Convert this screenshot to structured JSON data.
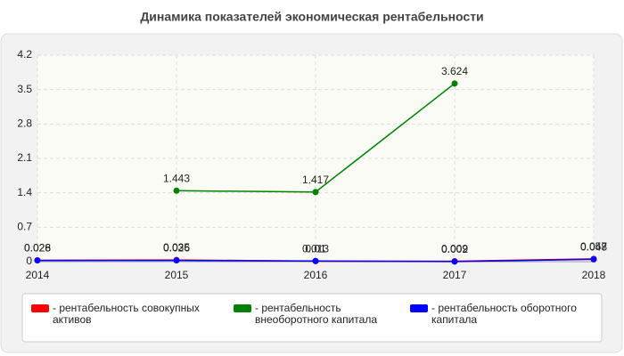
{
  "chart_data": {
    "type": "line",
    "title": "Динамика показателей экономическая рентабельности",
    "categories": [
      "2014",
      "2015",
      "2016",
      "2017",
      "2018"
    ],
    "series": [
      {
        "name": "- рентабельность совокупных активов",
        "color": "#ff0000",
        "values": [
          0.028,
          0.035,
          0.01,
          0.009,
          0.057
        ]
      },
      {
        "name": "- рентабельность внеоборотного капитала",
        "color": "#008000",
        "values": [
          null,
          1.443,
          1.417,
          3.624,
          null
        ]
      },
      {
        "name": "- рентабельность оборотного капитала",
        "color": "#0000ff",
        "values": [
          0.026,
          0.026,
          0.013,
          0.002,
          0.048
        ]
      }
    ],
    "ylim": [
      0,
      4.2
    ],
    "yticks": [
      0,
      0.7,
      1.4,
      2.1,
      2.8,
      3.5,
      4.2
    ],
    "grid": true
  }
}
